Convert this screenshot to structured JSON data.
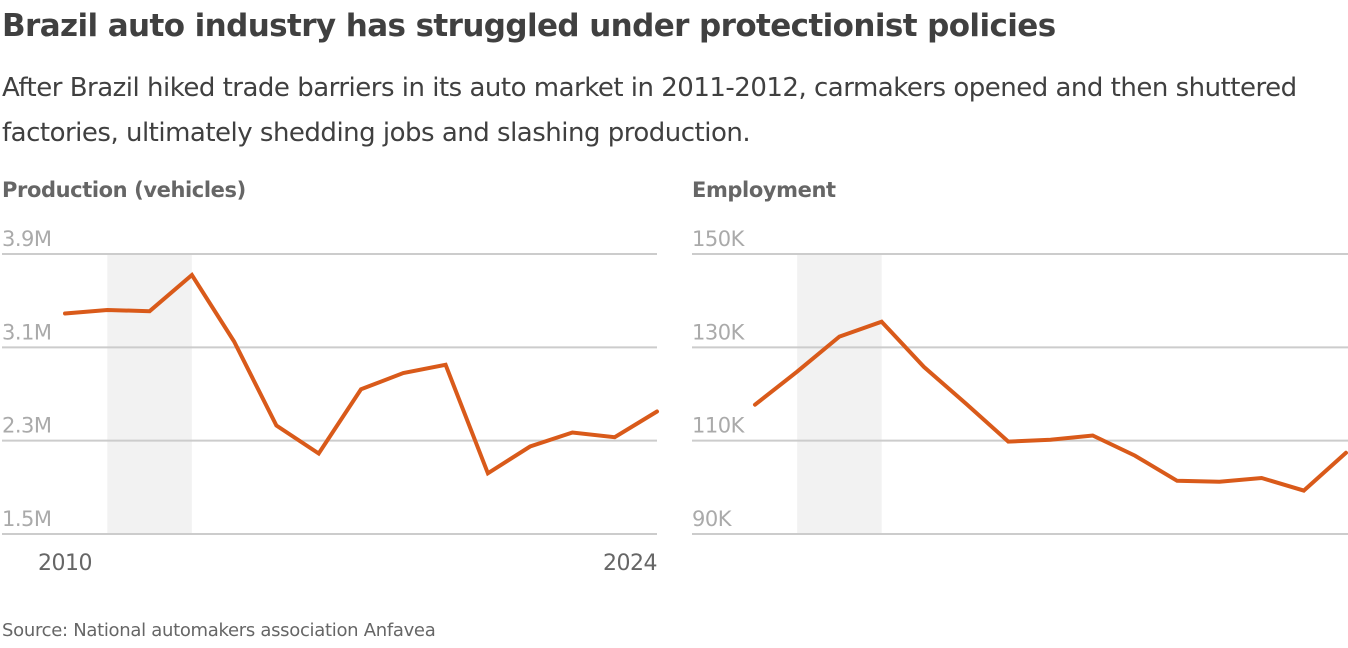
{
  "header": {
    "title": "Brazil auto industry has struggled under protectionist policies",
    "subtitle": "After Brazil hiked trade barriers in its auto market in 2011-2012, carmakers opened and then shuttered factories, ultimately shedding jobs and slashing production."
  },
  "footer": {
    "source": "Source: National automakers association Anfavea"
  },
  "colors": {
    "line": "#d95a1a",
    "highlight_band": "#f2f2f2",
    "gridline": "#cccccc",
    "text_dark": "#404040",
    "text_mid": "#666666",
    "text_light": "#aaaaaa"
  },
  "chart_data": [
    {
      "type": "line",
      "title": "Production (vehicles)",
      "xlabel": "",
      "ylabel": "",
      "x": [
        2010,
        2011,
        2012,
        2013,
        2014,
        2015,
        2016,
        2017,
        2018,
        2019,
        2020,
        2021,
        2022,
        2023,
        2024
      ],
      "series": [
        {
          "name": "Production",
          "values": [
            3.39,
            3.42,
            3.41,
            3.72,
            3.15,
            2.43,
            2.19,
            2.74,
            2.88,
            2.95,
            2.02,
            2.25,
            2.37,
            2.33,
            2.55
          ]
        }
      ],
      "value_unit": "million vehicles",
      "ylim": [
        1.5,
        3.9
      ],
      "yticks": [
        3.9,
        3.1,
        2.3,
        1.5
      ],
      "ytick_labels": [
        "3.9M",
        "3.1M",
        "2.3M",
        "1.5M"
      ],
      "xticks": [
        2010,
        2024
      ],
      "xtick_labels": [
        "2010",
        "2024"
      ],
      "highlight_range": [
        2011,
        2013
      ],
      "grid": true
    },
    {
      "type": "line",
      "title": "Employment",
      "xlabel": "",
      "ylabel": "",
      "x": [
        2010,
        2011,
        2012,
        2013,
        2014,
        2015,
        2016,
        2017,
        2018,
        2019,
        2020,
        2021,
        2022,
        2023,
        2024
      ],
      "series": [
        {
          "name": "Employment",
          "values": [
            117.7,
            124.8,
            132.3,
            135.5,
            125.8,
            117.9,
            109.8,
            110.2,
            111.1,
            106.8,
            101.4,
            101.2,
            102.0,
            99.3,
            107.4
          ]
        }
      ],
      "value_unit": "thousand jobs",
      "ylim": [
        90,
        150
      ],
      "yticks": [
        150,
        130,
        110,
        90
      ],
      "ytick_labels": [
        "150K",
        "130K",
        "110K",
        "90K"
      ],
      "xticks": [],
      "xtick_labels": [],
      "highlight_range": [
        2011,
        2013
      ],
      "grid": true
    }
  ]
}
